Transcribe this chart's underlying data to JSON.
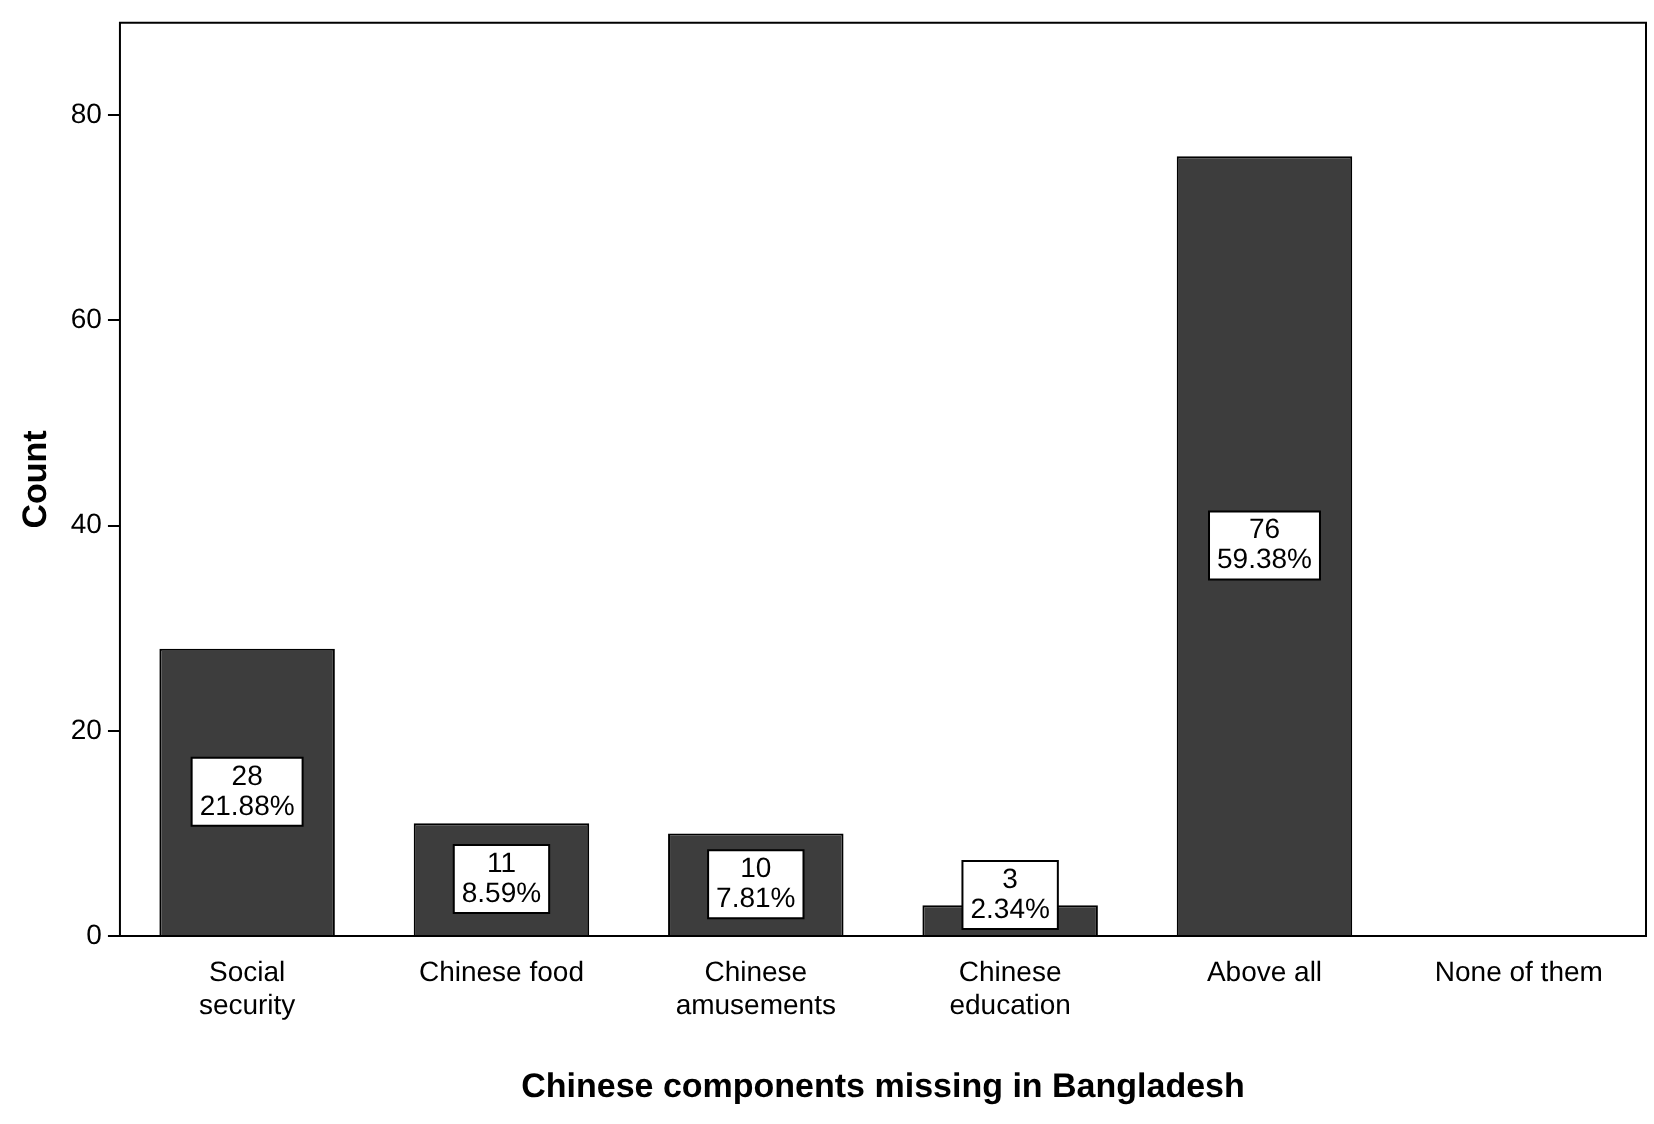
{
  "chart_data": {
    "type": "bar",
    "xlabel": "Chinese components missing in Bangladesh",
    "ylabel": "Count",
    "categories": [
      "Social security",
      "Chinese food",
      "Chinese amusements",
      "Chinese education",
      "Above all",
      "None of them"
    ],
    "values": [
      28,
      11,
      10,
      3,
      76,
      0
    ],
    "value_labels": [
      "28\n21.88%",
      "11\n8.59%",
      "10\n7.81%",
      "3\n2.34%",
      "76\n59.38%",
      null
    ],
    "color": "#3d3d3d",
    "ylim": [
      0,
      89
    ],
    "yticks": [
      0,
      20,
      40,
      60,
      80
    ],
    "grid": false,
    "legend": false
  }
}
